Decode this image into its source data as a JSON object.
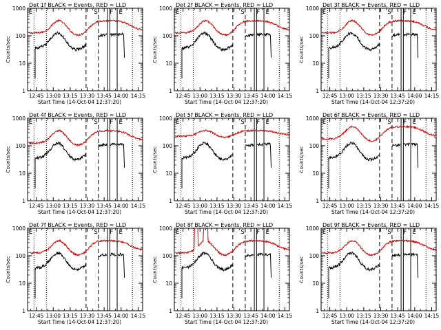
{
  "figure": {
    "background": "#ffffff"
  },
  "colors": {
    "events": "#000000",
    "lld": "#cc0000",
    "axes": "#000000"
  },
  "chart_data": [
    {
      "type": "line",
      "title": "Det 1f BLACK = Events, RED = LLD",
      "det": 1
    },
    {
      "type": "line",
      "title": "Det 2f BLACK = Events, RED = LLD",
      "det": 2
    },
    {
      "type": "line",
      "title": "Det 3f BLACK = Events, RED = LLD",
      "det": 3
    },
    {
      "type": "line",
      "title": "Det 4f BLACK = Events, RED = LLD",
      "det": 4
    },
    {
      "type": "line",
      "title": "Det 5f BLACK = Events, RED = LLD",
      "det": 5
    },
    {
      "type": "line",
      "title": "Det 6f BLACK = Events, RED = LLD",
      "det": 6
    },
    {
      "type": "line",
      "title": "Det 7f BLACK = Events, RED = LLD",
      "det": 7
    },
    {
      "type": "line",
      "title": "Det 8f BLACK = Events, RED = LLD",
      "det": 8
    },
    {
      "type": "line",
      "title": "Det 9f BLACK = Events, RED = LLD",
      "det": 9
    }
  ],
  "shared": {
    "xlabel": "Start Time (14-Oct-04 12:37:20)",
    "ylabel": "Counts/sec",
    "x_tick_labels": [
      "12:45",
      "13:00",
      "13:15",
      "13:30",
      "13:45",
      "14:00",
      "14:15"
    ],
    "x_tick_minutes": [
      45,
      60,
      75,
      90,
      105,
      120,
      135
    ],
    "xlim_minutes": [
      37.33,
      139
    ],
    "y_scale": "log",
    "ylim": [
      1,
      1000
    ],
    "y_tick_labels": [
      "1",
      "10",
      "100",
      "1000"
    ],
    "marker_labels": [
      "E",
      "S",
      "F",
      "E"
    ],
    "dotted_lines_minutes": [
      43,
      54,
      130
    ],
    "dashed_lines_minutes": [
      89,
      100
    ],
    "solid_lines_minutes": [
      108,
      110,
      116.5
    ],
    "series_names": [
      "Events",
      "LLD"
    ]
  }
}
